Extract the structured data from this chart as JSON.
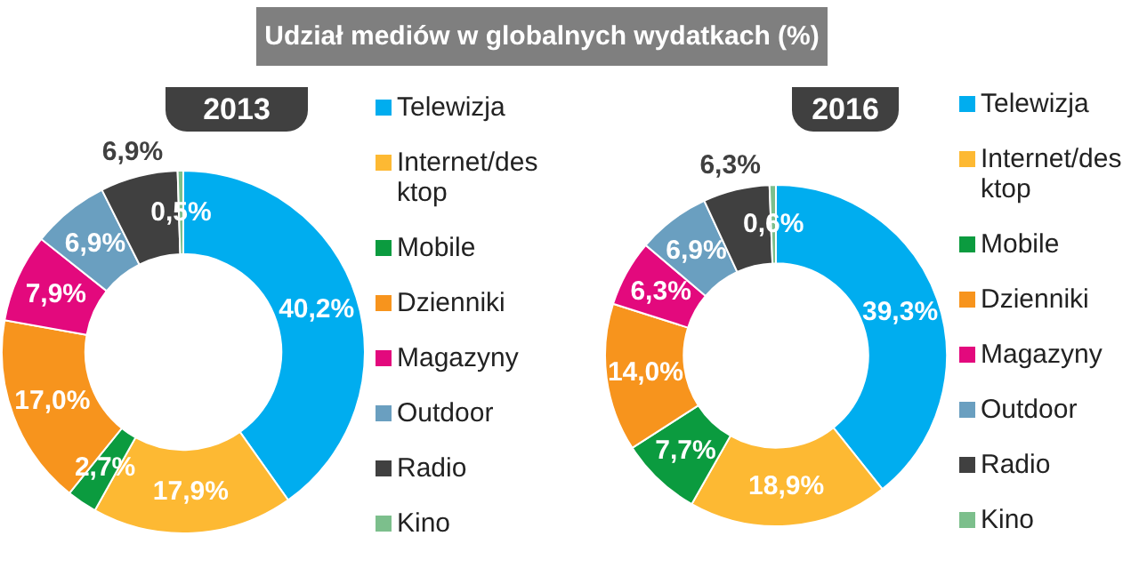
{
  "chart_data": [
    {
      "type": "donut",
      "title": "Udział mediów w globalnych wydatkach (%)",
      "subtitle": "2013",
      "categories": [
        "Telewizja",
        "Internet/desktop",
        "Mobile",
        "Dzienniki",
        "Magazyny",
        "Outdoor",
        "Radio",
        "Kino"
      ],
      "values": [
        40.2,
        17.9,
        2.7,
        17.0,
        7.9,
        6.9,
        6.9,
        0.5
      ],
      "value_labels": [
        "40,2%",
        "17,9%",
        "2,7%",
        "17,0%",
        "7,9%",
        "6,9%",
        "6,9%",
        "0,5%"
      ],
      "colors": [
        "#00adef",
        "#fdb933",
        "#0b9b3f",
        "#f7941d",
        "#e3097d",
        "#6a9fc0",
        "#404040",
        "#7cbf8c"
      ],
      "legend": "right"
    },
    {
      "type": "donut",
      "subtitle": "2016",
      "categories": [
        "Telewizja",
        "Internet/desktop",
        "Mobile",
        "Dzienniki",
        "Magazyny",
        "Outdoor",
        "Radio",
        "Kino"
      ],
      "values": [
        39.3,
        18.9,
        7.7,
        14.0,
        6.3,
        6.9,
        6.3,
        0.6
      ],
      "value_labels": [
        "39,3%",
        "18,9%",
        "7,7%",
        "14,0%",
        "6,3%",
        "6,9%",
        "6,3%",
        "0,6%"
      ],
      "colors": [
        "#00adef",
        "#fdb933",
        "#0b9b3f",
        "#f7941d",
        "#e3097d",
        "#6a9fc0",
        "#404040",
        "#7cbf8c"
      ],
      "legend": "right"
    }
  ]
}
